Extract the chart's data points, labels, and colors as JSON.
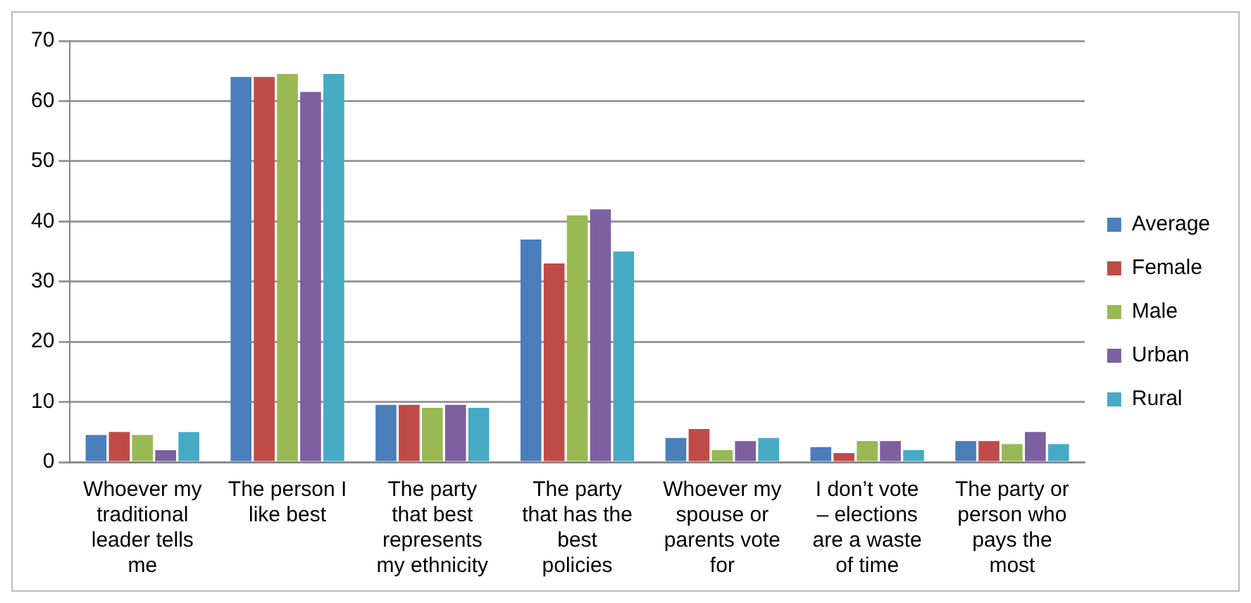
{
  "chart_data": {
    "type": "bar",
    "categories": [
      "Whoever my traditional leader tells me",
      "The person I like best",
      "The party that best represents my ethnicity",
      "The party that has the best policies",
      "Whoever my spouse or parents vote for",
      "I don’t vote – elections are a waste of time",
      "The party or person who pays the most"
    ],
    "series": [
      {
        "name": "Average",
        "color": "#4a7ebb",
        "values": [
          4.5,
          64,
          9.5,
          37,
          4,
          2.5,
          3.5
        ]
      },
      {
        "name": "Female",
        "color": "#be4b48",
        "values": [
          5,
          64,
          9.5,
          33,
          5.5,
          1.5,
          3.5
        ]
      },
      {
        "name": "Male",
        "color": "#98b954",
        "values": [
          4.5,
          64.5,
          9,
          41,
          2,
          3.5,
          3
        ]
      },
      {
        "name": "Urban",
        "color": "#7d60a0",
        "values": [
          2,
          61.5,
          9.5,
          42,
          3.5,
          3.5,
          5
        ]
      },
      {
        "name": "Rural",
        "color": "#46aac5",
        "values": [
          5,
          64.5,
          9,
          35,
          4,
          2,
          3
        ]
      }
    ],
    "ylim": [
      0,
      70
    ],
    "yticks": [
      0,
      10,
      20,
      30,
      40,
      50,
      60,
      70
    ],
    "grid": "y",
    "legend": "right"
  }
}
